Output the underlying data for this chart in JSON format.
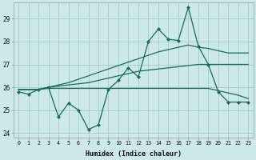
{
  "xlabel": "Humidex (Indice chaleur)",
  "background_color": "#cce8e8",
  "line_color": "#1a6b5a",
  "grid_color": "#aacece",
  "xlim": [
    -0.5,
    23.5
  ],
  "ylim": [
    23.8,
    29.7
  ],
  "yticks": [
    24,
    25,
    26,
    27,
    28,
    29
  ],
  "xticks": [
    0,
    1,
    2,
    3,
    4,
    5,
    6,
    7,
    8,
    9,
    10,
    11,
    12,
    13,
    14,
    15,
    16,
    17,
    18,
    19,
    20,
    21,
    22,
    23
  ],
  "series_main": [
    25.8,
    25.7,
    25.9,
    26.0,
    24.7,
    25.3,
    25.0,
    24.15,
    24.35,
    25.9,
    26.3,
    26.85,
    26.45,
    28.0,
    28.55,
    28.1,
    28.05,
    29.5,
    27.8,
    27.0,
    25.8,
    25.35,
    25.35,
    25.35
  ],
  "series_line1": [
    25.9,
    25.9,
    25.9,
    25.95,
    25.95,
    25.95,
    25.95,
    25.95,
    25.95,
    25.95,
    25.95,
    25.95,
    25.95,
    25.95,
    25.95,
    25.95,
    25.95,
    25.95,
    25.95,
    25.95,
    25.85,
    25.75,
    25.65,
    25.5
  ],
  "series_line2": [
    25.9,
    25.9,
    25.9,
    26.0,
    26.05,
    26.1,
    26.15,
    26.2,
    26.3,
    26.4,
    26.5,
    26.6,
    26.7,
    26.75,
    26.8,
    26.85,
    26.9,
    26.95,
    27.0,
    27.0,
    27.0,
    27.0,
    27.0,
    27.0
  ],
  "series_line3": [
    25.9,
    25.9,
    25.9,
    26.0,
    26.1,
    26.2,
    26.35,
    26.5,
    26.65,
    26.8,
    26.95,
    27.1,
    27.25,
    27.4,
    27.55,
    27.65,
    27.75,
    27.85,
    27.75,
    27.7,
    27.6,
    27.5,
    27.5,
    27.5
  ]
}
